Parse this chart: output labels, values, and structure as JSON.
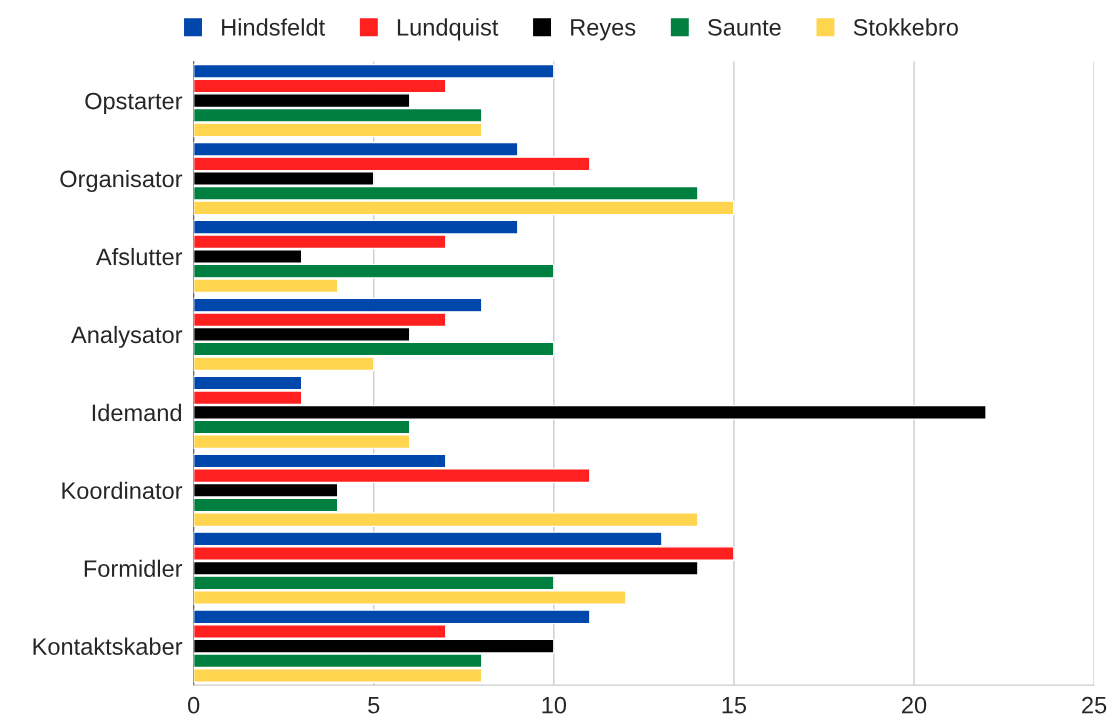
{
  "chart_data": {
    "type": "bar",
    "orientation": "horizontal",
    "categories": [
      "Opstarter",
      "Organisator",
      "Afslutter",
      "Analysator",
      "Idemand",
      "Koordinator",
      "Formidler",
      "Kontaktskaber"
    ],
    "series": [
      {
        "name": "Hindsfeldt",
        "color": "#0047ab",
        "values": [
          10,
          9,
          9,
          8,
          3,
          7,
          13,
          11
        ]
      },
      {
        "name": "Lundquist",
        "color": "#ff2020",
        "values": [
          7,
          11,
          7,
          7,
          3,
          11,
          15,
          7
        ]
      },
      {
        "name": "Reyes",
        "color": "#000000",
        "values": [
          6,
          5,
          3,
          6,
          22,
          4,
          14,
          10
        ]
      },
      {
        "name": "Saunte",
        "color": "#008040",
        "values": [
          8,
          14,
          10,
          10,
          6,
          4,
          10,
          8
        ]
      },
      {
        "name": "Stokkebro",
        "color": "#ffd54f",
        "values": [
          8,
          15,
          4,
          5,
          6,
          14,
          12,
          8
        ]
      }
    ],
    "xlim": [
      0,
      25
    ],
    "xticks": [
      0,
      5,
      10,
      15,
      20,
      25
    ],
    "grid": "x",
    "legend": "top"
  }
}
